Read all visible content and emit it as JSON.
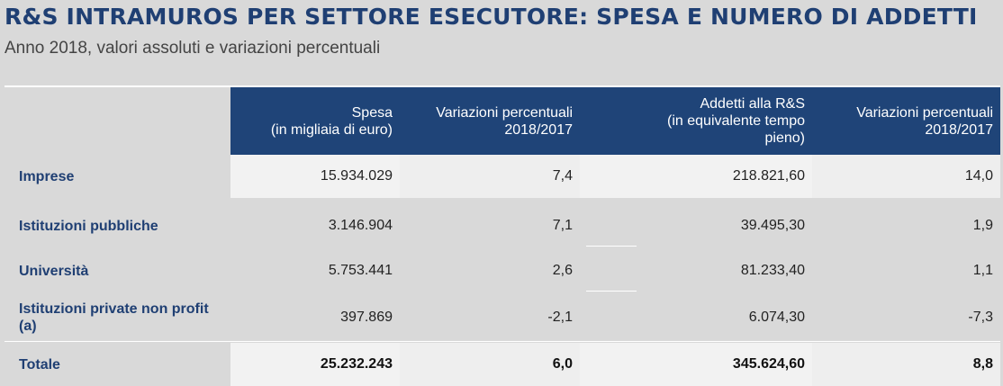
{
  "title": "R&S INTRAMUROS PER SETTORE ESECUTORE: SPESA E NUMERO DI ADDETTI",
  "subtitle": "Anno 2018, valori assoluti e variazioni percentuali",
  "table": {
    "headers": [
      "Spesa\n(in migliaia di euro)",
      "Variazioni percentuali\n2018/2017",
      "Addetti alla R&S\n(in equivalente tempo\npieno)",
      "Variazioni percentuali\n2018/2017"
    ],
    "rows": [
      {
        "label": "Imprese",
        "values": [
          "15.934.029",
          "7,4",
          "218.821,60",
          "14,0"
        ]
      },
      {
        "label": "Istituzioni pubbliche",
        "values": [
          "3.146.904",
          "7,1",
          "39.495,30",
          "1,9"
        ]
      },
      {
        "label": "Università",
        "values": [
          "5.753.441",
          "2,6",
          "81.233,40",
          "1,1"
        ]
      },
      {
        "label": "Istituzioni private non profit\n(a)",
        "values": [
          "397.869",
          "-2,1",
          "6.074,30",
          "-7,3"
        ]
      },
      {
        "label": "Totale",
        "values": [
          "25.232.243",
          "6,0",
          "345.624,60",
          "8,8"
        ]
      }
    ]
  }
}
